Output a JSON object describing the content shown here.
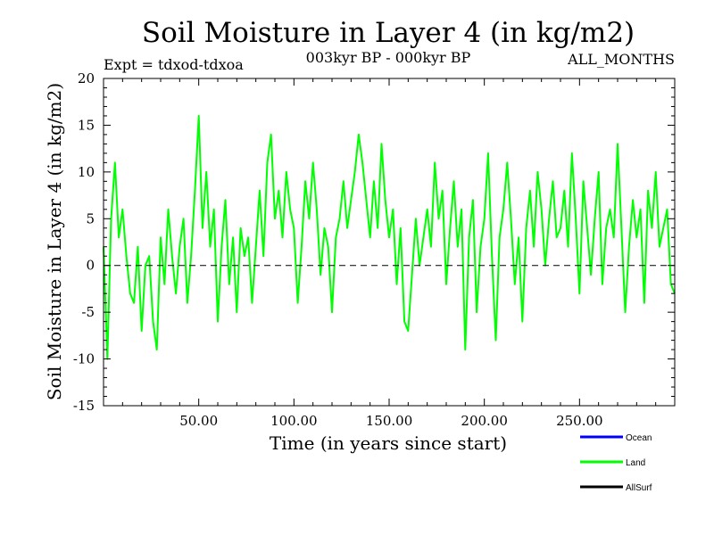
{
  "chart_data": {
    "type": "line",
    "title": "Soil Moisture in Layer 4 (in kg/m2)",
    "subtitle": "003kyr BP - 000kyr BP",
    "left_note": "Expt = tdxod-tdxoa",
    "right_note": "ALL_MONTHS",
    "xlabel": "Time (in years since start)",
    "ylabel": "Soil Moisture in Layer 4 (in kg/m2)",
    "xlim": [
      0,
      300
    ],
    "ylim": [
      -15,
      20
    ],
    "xticks": [
      50,
      100,
      150,
      200,
      250
    ],
    "xtick_labels": [
      "50.00",
      "100.00",
      "150.00",
      "200.00",
      "250.00"
    ],
    "yticks": [
      -15,
      -10,
      -5,
      0,
      5,
      10,
      15,
      20
    ],
    "ytick_labels": [
      "-15",
      "-10",
      "-5",
      "0",
      "5",
      "10",
      "15",
      "20"
    ],
    "zero_line": 0,
    "grid": false,
    "legend_position": "bottom-right",
    "series": [
      {
        "name": "Ocean",
        "color": "#0000ff",
        "values": []
      },
      {
        "name": "Land",
        "color": "#00ff00",
        "x": [
          0,
          2,
          4,
          6,
          8,
          10,
          12,
          14,
          16,
          18,
          20,
          22,
          24,
          26,
          28,
          30,
          32,
          34,
          36,
          38,
          40,
          42,
          44,
          46,
          48,
          50,
          52,
          54,
          56,
          58,
          60,
          62,
          64,
          66,
          68,
          70,
          72,
          74,
          76,
          78,
          80,
          82,
          84,
          86,
          88,
          90,
          92,
          94,
          96,
          98,
          100,
          102,
          104,
          106,
          108,
          110,
          112,
          114,
          116,
          118,
          120,
          122,
          124,
          126,
          128,
          130,
          132,
          134,
          136,
          138,
          140,
          142,
          144,
          146,
          148,
          150,
          152,
          154,
          156,
          158,
          160,
          162,
          164,
          166,
          168,
          170,
          172,
          174,
          176,
          178,
          180,
          182,
          184,
          186,
          188,
          190,
          192,
          194,
          196,
          198,
          200,
          202,
          204,
          206,
          208,
          210,
          212,
          214,
          216,
          218,
          220,
          222,
          224,
          226,
          228,
          230,
          232,
          234,
          236,
          238,
          240,
          242,
          244,
          246,
          248,
          250,
          252,
          254,
          256,
          258,
          260,
          262,
          264,
          266,
          268,
          270,
          272,
          274,
          276,
          278,
          280,
          282,
          284,
          286,
          288,
          290,
          292,
          294,
          296,
          298,
          300
        ],
        "values": [
          2,
          -10,
          5,
          11,
          3,
          6,
          1,
          -3,
          -4,
          2,
          -7,
          0,
          1,
          -6,
          -9,
          3,
          -2,
          6,
          1,
          -3,
          2,
          5,
          -4,
          1,
          8,
          16,
          4,
          10,
          2,
          6,
          -6,
          2,
          7,
          -2,
          3,
          -5,
          4,
          1,
          3,
          -4,
          2,
          8,
          1,
          11,
          14,
          5,
          8,
          3,
          10,
          6,
          4,
          -4,
          2,
          9,
          5,
          11,
          6,
          -1,
          4,
          2,
          -5,
          3,
          5,
          9,
          4,
          7,
          10,
          14,
          11,
          7,
          3,
          9,
          4,
          13,
          7,
          3,
          6,
          -2,
          4,
          -6,
          -7,
          -1,
          5,
          0,
          3,
          6,
          2,
          11,
          5,
          8,
          -2,
          4,
          9,
          2,
          6,
          -9,
          3,
          7,
          -5,
          2,
          5,
          12,
          1,
          -8,
          3,
          6,
          11,
          5,
          -2,
          3,
          -6,
          4,
          8,
          2,
          10,
          6,
          0,
          5,
          9,
          3,
          4,
          8,
          2,
          12,
          5,
          -3,
          9,
          4,
          -1,
          5,
          10,
          -2,
          4,
          6,
          3,
          13,
          4,
          -5,
          2,
          7,
          3,
          6,
          -4,
          8,
          4,
          10,
          2,
          4,
          6,
          -2,
          -3
        ]
      },
      {
        "name": "AllSurf",
        "color": "#000000",
        "values": []
      }
    ]
  }
}
